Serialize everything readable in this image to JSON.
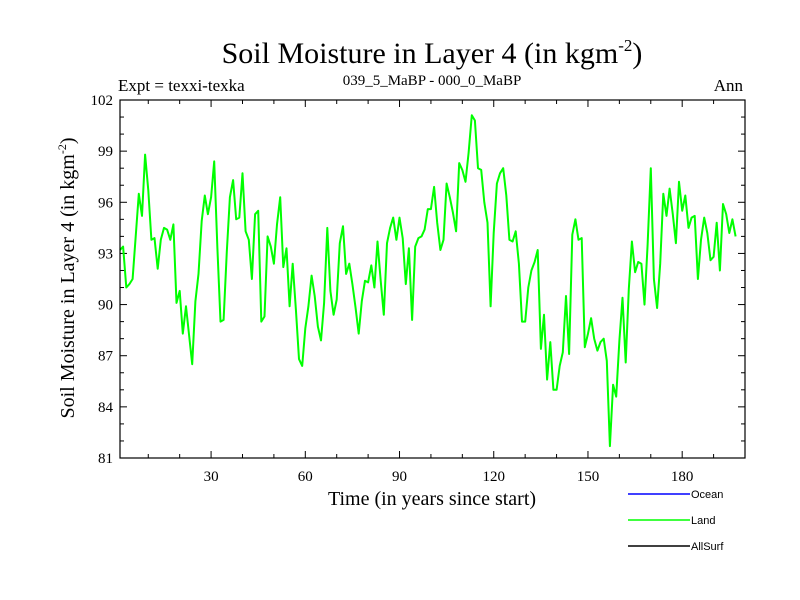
{
  "chart_data": {
    "type": "line",
    "title": "Soil Moisture in Layer 4 (in kgm",
    "title_sup": "-2",
    "title_end": ")",
    "subtitle_left": "Expt = texxi-texka",
    "subtitle_center": "039_5_MaBP - 000_0_MaBP",
    "subtitle_right": "Ann",
    "xlabel": "Time (in years since start)",
    "ylabel": "Soil Moisture in Layer 4 (in kgm",
    "ylabel_sup": "-2",
    "ylabel_end": ")",
    "xlim": [
      1,
      200
    ],
    "ylim": [
      81,
      102
    ],
    "xticks": [
      30,
      60,
      90,
      120,
      150,
      180
    ],
    "yticks": [
      81,
      84,
      87,
      90,
      93,
      96,
      99,
      102
    ],
    "x_start": 1,
    "series": [
      {
        "name": "Ocean",
        "color": "#0000ff",
        "values": []
      },
      {
        "name": "Land",
        "color": "#00ff00",
        "values": [
          93.2,
          93.4,
          91.0,
          91.2,
          91.5,
          94.0,
          96.5,
          95.2,
          98.8,
          96.7,
          93.8,
          93.9,
          92.1,
          93.8,
          94.5,
          94.4,
          93.8,
          94.7,
          90.1,
          90.8,
          88.3,
          89.9,
          88.2,
          86.5,
          90.2,
          91.8,
          94.9,
          96.4,
          95.3,
          96.3,
          98.4,
          93.3,
          89.0,
          89.1,
          93.1,
          96.3,
          97.3,
          95.0,
          95.1,
          97.7,
          94.3,
          93.8,
          91.5,
          95.3,
          95.5,
          89.0,
          89.3,
          94.0,
          93.4,
          92.4,
          94.7,
          96.3,
          92.2,
          93.3,
          89.9,
          92.4,
          89.7,
          86.8,
          86.4,
          88.6,
          89.9,
          91.7,
          90.5,
          88.7,
          87.9,
          90.1,
          94.5,
          90.8,
          89.4,
          90.3,
          93.6,
          94.6,
          91.8,
          92.4,
          91.2,
          89.8,
          88.3,
          90.2,
          91.4,
          91.3,
          92.3,
          91.0,
          93.7,
          91.4,
          89.4,
          93.6,
          94.5,
          95.1,
          93.8,
          95.1,
          93.9,
          91.2,
          93.3,
          89.1,
          93.4,
          93.9,
          94.0,
          94.4,
          95.6,
          95.6,
          96.9,
          94.8,
          93.2,
          93.8,
          97.1,
          96.3,
          95.4,
          94.3,
          98.3,
          97.9,
          97.2,
          98.9,
          101.1,
          100.8,
          98.0,
          97.9,
          96.0,
          94.8,
          89.9,
          94.2,
          97.1,
          97.7,
          98.0,
          96.4,
          93.8,
          93.7,
          94.3,
          92.4,
          89.0,
          89.0,
          91.0,
          92.0,
          92.5,
          93.2,
          87.4,
          89.4,
          85.6,
          87.8,
          85.0,
          85.0,
          86.4,
          87.2,
          90.5,
          87.1,
          94.1,
          95.0,
          93.8,
          93.9,
          87.5,
          88.3,
          89.2,
          88.0,
          87.3,
          87.8,
          88.0,
          86.7,
          81.7,
          85.3,
          84.6,
          87.9,
          90.4,
          86.6,
          90.9,
          93.7,
          91.9,
          92.5,
          92.4,
          90.0,
          93.5,
          98.0,
          91.5,
          89.8,
          92.4,
          96.5,
          95.2,
          96.8,
          95.3,
          93.6,
          97.2,
          95.5,
          96.4,
          94.5,
          95.1,
          95.2,
          91.5,
          93.8,
          95.1,
          94.2,
          92.6,
          92.8,
          94.8,
          92.0,
          95.9,
          95.3,
          94.2,
          95.0,
          94.0
        ]
      },
      {
        "name": "AllSurf",
        "color": "#000000",
        "values": []
      }
    ]
  }
}
